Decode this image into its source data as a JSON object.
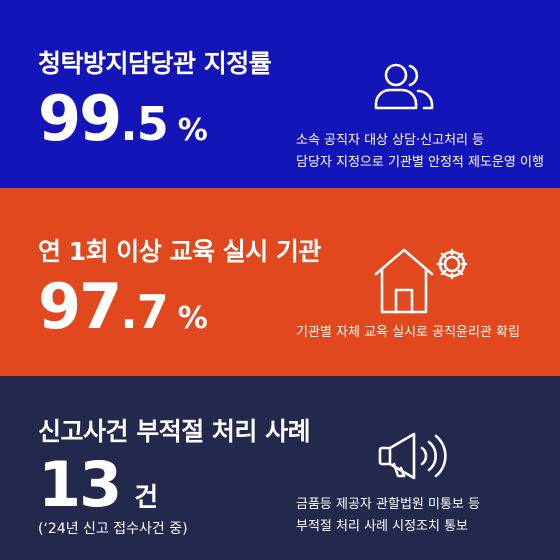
{
  "colors": {
    "panel1_bg": "#1415b9",
    "panel2_bg": "#e2481e",
    "panel3_bg": "#23294d",
    "text": "#ffffff"
  },
  "panels": [
    {
      "title": "청탁방지담당관 지정률",
      "stat_int": "99",
      "stat_dec": ".5",
      "stat_unit": "%",
      "desc_lines": [
        "소속 공직자 대상 상담·신고처리 등",
        "담당자 지정으로 기관별 안정적 제도운영 이행"
      ],
      "icon": "people-icon"
    },
    {
      "title": "연 1회 이상 교육 실시 기관",
      "stat_int": "97",
      "stat_dec": ".7",
      "stat_unit": "%",
      "desc_lines": [
        "기관별 자체 교육 실시로 공직윤리관 확립"
      ],
      "icon": "house-gear-icon"
    },
    {
      "title": "신고사건 부적절 처리 사례",
      "stat_int": "13",
      "stat_unit": "건",
      "note": "(‘24년 신고 접수사건 중)",
      "desc_lines": [
        "금품등 제공자 관할법원 미통보 등",
        "부적절 처리 사례 시정조치 통보"
      ],
      "icon": "megaphone-icon"
    }
  ]
}
